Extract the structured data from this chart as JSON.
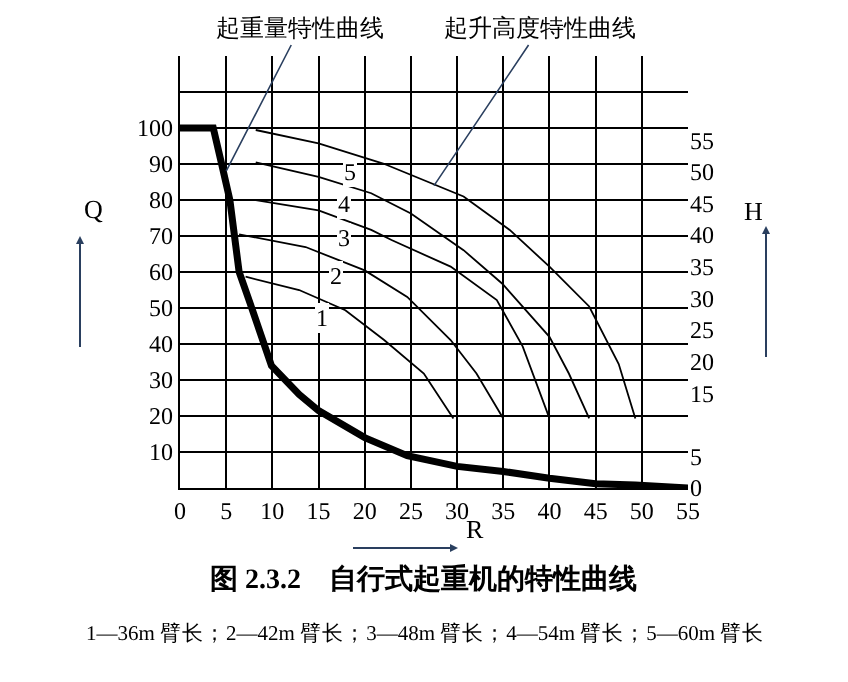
{
  "chart_data": {
    "type": "line",
    "title": "图 2.3.2　自行式起重机的特性曲线",
    "xlabel": "R",
    "ylabel": "Q",
    "y2label": "H",
    "xlim": [
      0,
      55
    ],
    "xticks": [
      0,
      5,
      10,
      15,
      20,
      25,
      30,
      35,
      40,
      45,
      50,
      55
    ],
    "ylim": [
      0,
      120
    ],
    "yticks": [
      {
        "value": 0,
        "label": null
      },
      10,
      20,
      30,
      40,
      50,
      60,
      70,
      80,
      90,
      100,
      {
        "value": 110,
        "label": null
      }
    ],
    "y2lim": [
      0,
      68.3
    ],
    "y2ticks": [
      0,
      5,
      15,
      20,
      25,
      30,
      35,
      40,
      45,
      50,
      55
    ],
    "grid": true,
    "legend": false,
    "marker": "none",
    "line_style": "solid",
    "series": [
      {
        "color": "#000000",
        "x": [
          0,
          3.6,
          4.6,
          5.4,
          6.4,
          7.5,
          9.9,
          12.9,
          15,
          20,
          24.6,
          30,
          35,
          40,
          45,
          49.3,
          55
        ],
        "values": [
          100,
          100,
          89,
          80,
          60,
          52,
          34,
          26,
          21.5,
          14,
          9,
          6,
          4.6,
          2.7,
          1.2,
          0.8,
          0
        ]
      },
      {
        "name": "1",
        "axis": "y2",
        "color": "#000000",
        "x": [
          7.1,
          12.9,
          17.9,
          22.1,
          26.4,
          29.6
        ],
        "values": [
          33.4,
          31.3,
          28.1,
          23.4,
          18.1,
          11
        ]
      },
      {
        "name": "2",
        "axis": "y2",
        "color": "#000000",
        "x": [
          6.4,
          13.6,
          20,
          24.6,
          29.3,
          32.1,
          35
        ],
        "values": [
          40.1,
          38.1,
          34.4,
          30.2,
          23.4,
          18.1,
          11
        ]
      },
      {
        "name": "3",
        "axis": "y2",
        "color": "#000000",
        "x": [
          8.2,
          15,
          20.7,
          22.9,
          29.3,
          34.3,
          37.1,
          40
        ],
        "values": [
          45.5,
          43.9,
          40.8,
          39.2,
          35,
          29.7,
          22.4,
          11
        ]
      },
      {
        "name": "4",
        "axis": "y2",
        "color": "#000000",
        "x": [
          8.2,
          15,
          20.7,
          25,
          30.7,
          34.9,
          40,
          42.1,
          44.3
        ],
        "values": [
          51.5,
          49.2,
          46.6,
          43.4,
          37.6,
          32.3,
          23.9,
          18.1,
          11
        ]
      },
      {
        "name": "5",
        "axis": "y2",
        "color": "#000000",
        "x": [
          8.2,
          15,
          22,
          30.7,
          35.7,
          40,
          44.3,
          47.5,
          49.3
        ],
        "values": [
          56.6,
          54.5,
          51.3,
          46.1,
          40.8,
          35,
          28.7,
          19.6,
          11
        ]
      }
    ],
    "annotations": [
      {
        "text": "起重量特性曲线",
        "x": 5,
        "y": 88
      },
      {
        "text": "起升高度特性曲线",
        "x": 27.5,
        "y": 84
      },
      "1—36m 臂长；2—42m 臂长；3—48m 臂长；4—54m 臂长；5—60m 臂长"
    ]
  }
}
